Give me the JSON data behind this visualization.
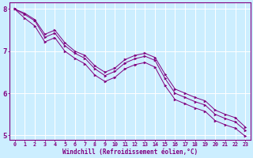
{
  "background_color": "#cceeff",
  "line_color": "#800080",
  "grid_color": "#ffffff",
  "xlabel": "Windchill (Refroidissement éolien,°C)",
  "x_values": [
    0,
    1,
    2,
    3,
    4,
    5,
    6,
    7,
    8,
    9,
    10,
    11,
    12,
    13,
    14,
    15,
    16,
    17,
    18,
    19,
    20,
    21,
    22,
    23
  ],
  "line1": [
    8.0,
    7.9,
    7.75,
    7.4,
    7.5,
    7.2,
    7.0,
    6.9,
    6.65,
    6.5,
    6.6,
    6.8,
    6.9,
    6.95,
    6.85,
    6.45,
    6.1,
    6.0,
    5.9,
    5.82,
    5.6,
    5.5,
    5.42,
    5.2
  ],
  "line2": [
    8.0,
    7.87,
    7.72,
    7.33,
    7.43,
    7.13,
    6.95,
    6.83,
    6.58,
    6.42,
    6.52,
    6.72,
    6.82,
    6.88,
    6.78,
    6.35,
    6.0,
    5.9,
    5.8,
    5.72,
    5.5,
    5.4,
    5.32,
    5.12
  ],
  "line3": [
    8.0,
    7.78,
    7.6,
    7.22,
    7.32,
    7.0,
    6.83,
    6.7,
    6.43,
    6.28,
    6.38,
    6.58,
    6.68,
    6.73,
    6.62,
    6.18,
    5.85,
    5.75,
    5.65,
    5.57,
    5.35,
    5.25,
    5.17,
    4.98
  ],
  "ylim": [
    4.9,
    8.15
  ],
  "yticks": [
    5,
    6,
    7,
    8
  ],
  "xlim": [
    -0.5,
    23.5
  ],
  "figsize": [
    3.2,
    2.0
  ],
  "dpi": 100
}
